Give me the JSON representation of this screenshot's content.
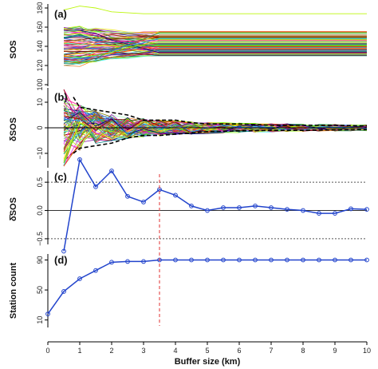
{
  "chart_data": [
    {
      "panel_label": "(a)",
      "type": "line",
      "ylabel": "SOS",
      "ylim": [
        100,
        180
      ],
      "yticks": [
        "100",
        "120",
        "140",
        "160",
        "180"
      ],
      "xlim": [
        0,
        10
      ],
      "series_count": 80,
      "value_range_at_0km": [
        120,
        160
      ],
      "value_range_at_10km": [
        130,
        156
      ],
      "outlier_series": {
        "x": [
          0.5,
          1,
          1.5,
          2,
          3,
          10
        ],
        "y": [
          178,
          182,
          180,
          176,
          174,
          174
        ]
      },
      "grid": false
    },
    {
      "panel_label": "(b)",
      "type": "line",
      "ylabel": "δSOS",
      "ylim": [
        -15,
        15
      ],
      "yticks": [
        "−10",
        "0",
        "10"
      ],
      "xlim": [
        0,
        10
      ],
      "series_count": 80,
      "reference_line": 0,
      "envelope": {
        "style": "dashed",
        "color": "#000000",
        "x": [
          0.8,
          1,
          1.5,
          2,
          2.5,
          3,
          3.5,
          4,
          4.5,
          5,
          6,
          7,
          8,
          9,
          10
        ],
        "upper": [
          12,
          8,
          7,
          6,
          5,
          3,
          3,
          3,
          2,
          1.5,
          1.5,
          1,
          1,
          1,
          0.7
        ],
        "lower": [
          -10,
          -8,
          -7,
          -6,
          -4,
          -3,
          -3,
          -2.5,
          -2,
          -1.5,
          -1.2,
          -1,
          -1,
          -0.8,
          -0.7
        ]
      },
      "grid": false
    },
    {
      "panel_label": "(c)",
      "type": "line",
      "ylabel": "δ̄SOS",
      "ylim": [
        -0.6,
        0.7
      ],
      "yticks": [
        "−0.5",
        "0.0",
        "0.5"
      ],
      "xlim": [
        0,
        10
      ],
      "series": [
        {
          "color": "#2244cc",
          "x": [
            0.5,
            1,
            1.5,
            2,
            2.5,
            3,
            3.5,
            4,
            4.5,
            5,
            5.5,
            6,
            6.5,
            7,
            7.5,
            8,
            8.5,
            9,
            9.5,
            10
          ],
          "values": [
            -0.72,
            0.9,
            0.42,
            0.7,
            0.25,
            0.15,
            0.37,
            0.27,
            0.08,
            0.0,
            0.05,
            0.05,
            0.08,
            0.05,
            0.02,
            0.0,
            -0.05,
            -0.05,
            0.03,
            0.02
          ]
        }
      ],
      "hlines": [
        {
          "y": 0.5,
          "style": "dotted"
        },
        {
          "y": 0.0,
          "style": "solid"
        },
        {
          "y": -0.5,
          "style": "dotted"
        }
      ],
      "vline": {
        "x": 3.5,
        "color": "#e03030",
        "style": "dashed",
        "span_panels": [
          "(c)",
          "(d)"
        ]
      },
      "grid": false
    },
    {
      "panel_label": "(d)",
      "type": "line",
      "ylabel": "Station count",
      "ylim": [
        0,
        98
      ],
      "yticks": [
        "10",
        "50",
        "90"
      ],
      "xlabel": "Buffer size (km)",
      "xlim": [
        0,
        10
      ],
      "xticks": [
        "0",
        "1",
        "2",
        "3",
        "4",
        "5",
        "6",
        "7",
        "8",
        "9",
        "10"
      ],
      "series": [
        {
          "color": "#2244cc",
          "x": [
            0,
            0.5,
            1,
            1.5,
            2,
            2.5,
            3,
            3.5,
            4,
            4.5,
            5,
            5.5,
            6,
            6.5,
            7,
            7.5,
            8,
            8.5,
            9,
            9.5,
            10
          ],
          "values": [
            18,
            48,
            65,
            76,
            87,
            88,
            88,
            90,
            90,
            90,
            90,
            90,
            90,
            90,
            90,
            90,
            90,
            90,
            90,
            90,
            90
          ]
        }
      ],
      "grid": false
    }
  ],
  "colors": {
    "axis": "#000000",
    "series_blue": "#2244cc",
    "vline_red": "#e03030"
  }
}
